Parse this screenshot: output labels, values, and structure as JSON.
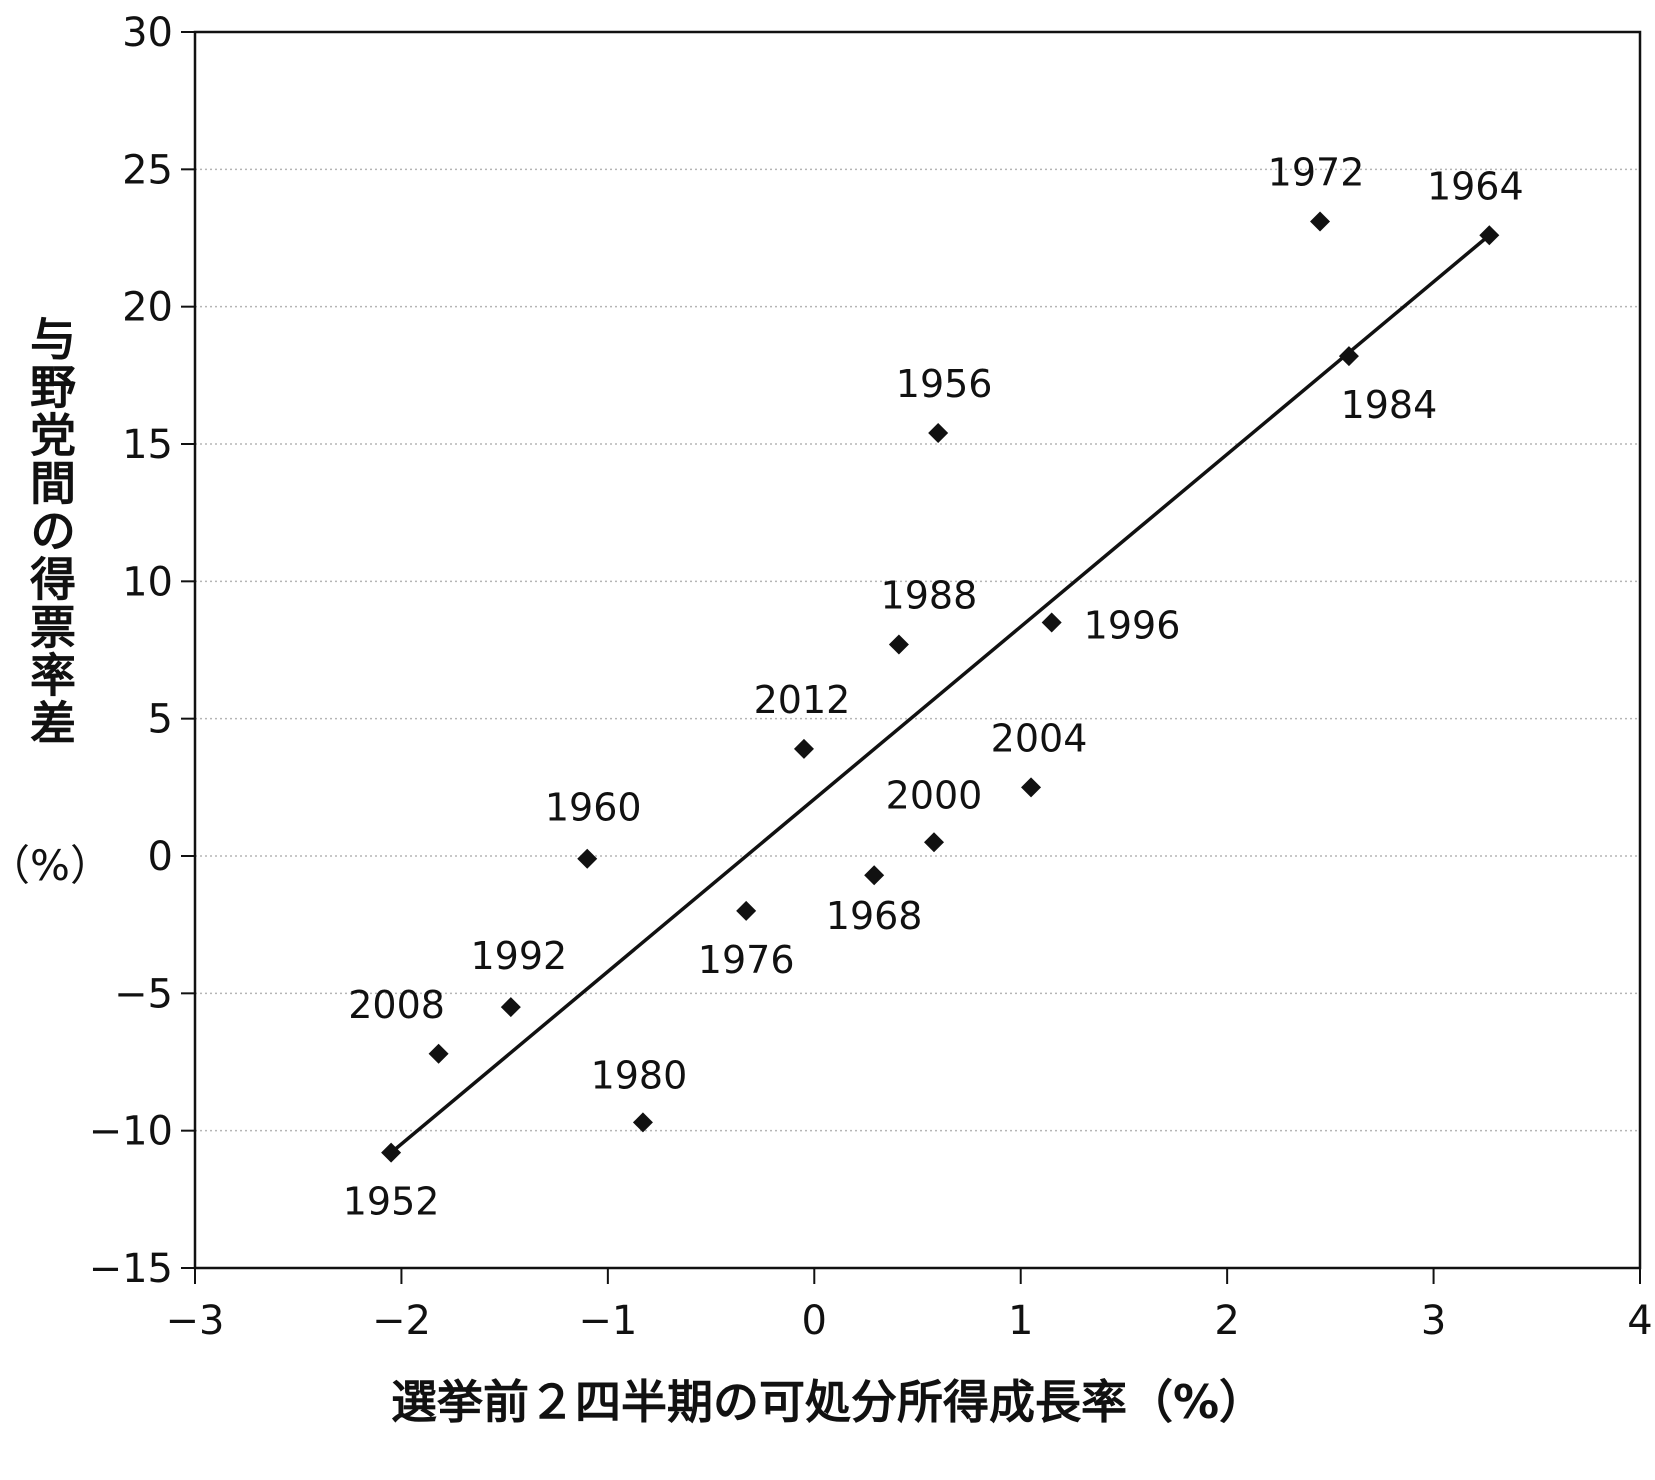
{
  "chart_data": {
    "type": "scatter",
    "title": "",
    "xlabel": "選挙前２四半期の可処分所得成長率（%）",
    "ylabel": "与野党間の得票率差",
    "ylabel_unit": "（%）",
    "xlim": [
      -3,
      4
    ],
    "ylim": [
      -15,
      30
    ],
    "x_ticks": [
      -3,
      -2,
      -1,
      0,
      1,
      2,
      3,
      4
    ],
    "x_tick_labels": [
      "−3",
      "−2",
      "−1",
      "0",
      "1",
      "2",
      "3",
      "4"
    ],
    "y_ticks": [
      -15,
      -10,
      -5,
      0,
      5,
      10,
      15,
      20,
      25,
      30
    ],
    "y_tick_labels": [
      "−15",
      "−10",
      "−5",
      "0",
      "5",
      "10",
      "15",
      "20",
      "25",
      "30"
    ],
    "grid": "horizontal-dotted",
    "marker": "diamond",
    "colors": {
      "marker": "#111111",
      "line": "#111111",
      "grid": "#b5b5b5",
      "frame": "#111111",
      "background": "#ffffff"
    },
    "points": [
      {
        "label": "1952",
        "x": -2.05,
        "y": -10.8
      },
      {
        "label": "2008",
        "x": -1.82,
        "y": -7.2
      },
      {
        "label": "1992",
        "x": -1.47,
        "y": -5.5
      },
      {
        "label": "1960",
        "x": -1.1,
        "y": -0.1
      },
      {
        "label": "1980",
        "x": -0.83,
        "y": -9.7
      },
      {
        "label": "1976",
        "x": -0.33,
        "y": -2.0
      },
      {
        "label": "2012",
        "x": -0.05,
        "y": 3.9
      },
      {
        "label": "1968",
        "x": 0.29,
        "y": -0.7
      },
      {
        "label": "1988",
        "x": 0.41,
        "y": 7.7
      },
      {
        "label": "2000",
        "x": 0.58,
        "y": 0.5
      },
      {
        "label": "1956",
        "x": 0.6,
        "y": 15.4
      },
      {
        "label": "2004",
        "x": 1.05,
        "y": 2.5
      },
      {
        "label": "1996",
        "x": 1.15,
        "y": 8.5
      },
      {
        "label": "1972",
        "x": 2.45,
        "y": 23.1
      },
      {
        "label": "1984",
        "x": 2.59,
        "y": 18.2
      },
      {
        "label": "1964",
        "x": 3.27,
        "y": 22.6
      }
    ],
    "trendline": {
      "x": [
        -2.05,
        3.27
      ],
      "y": [
        -10.8,
        22.6
      ]
    }
  }
}
